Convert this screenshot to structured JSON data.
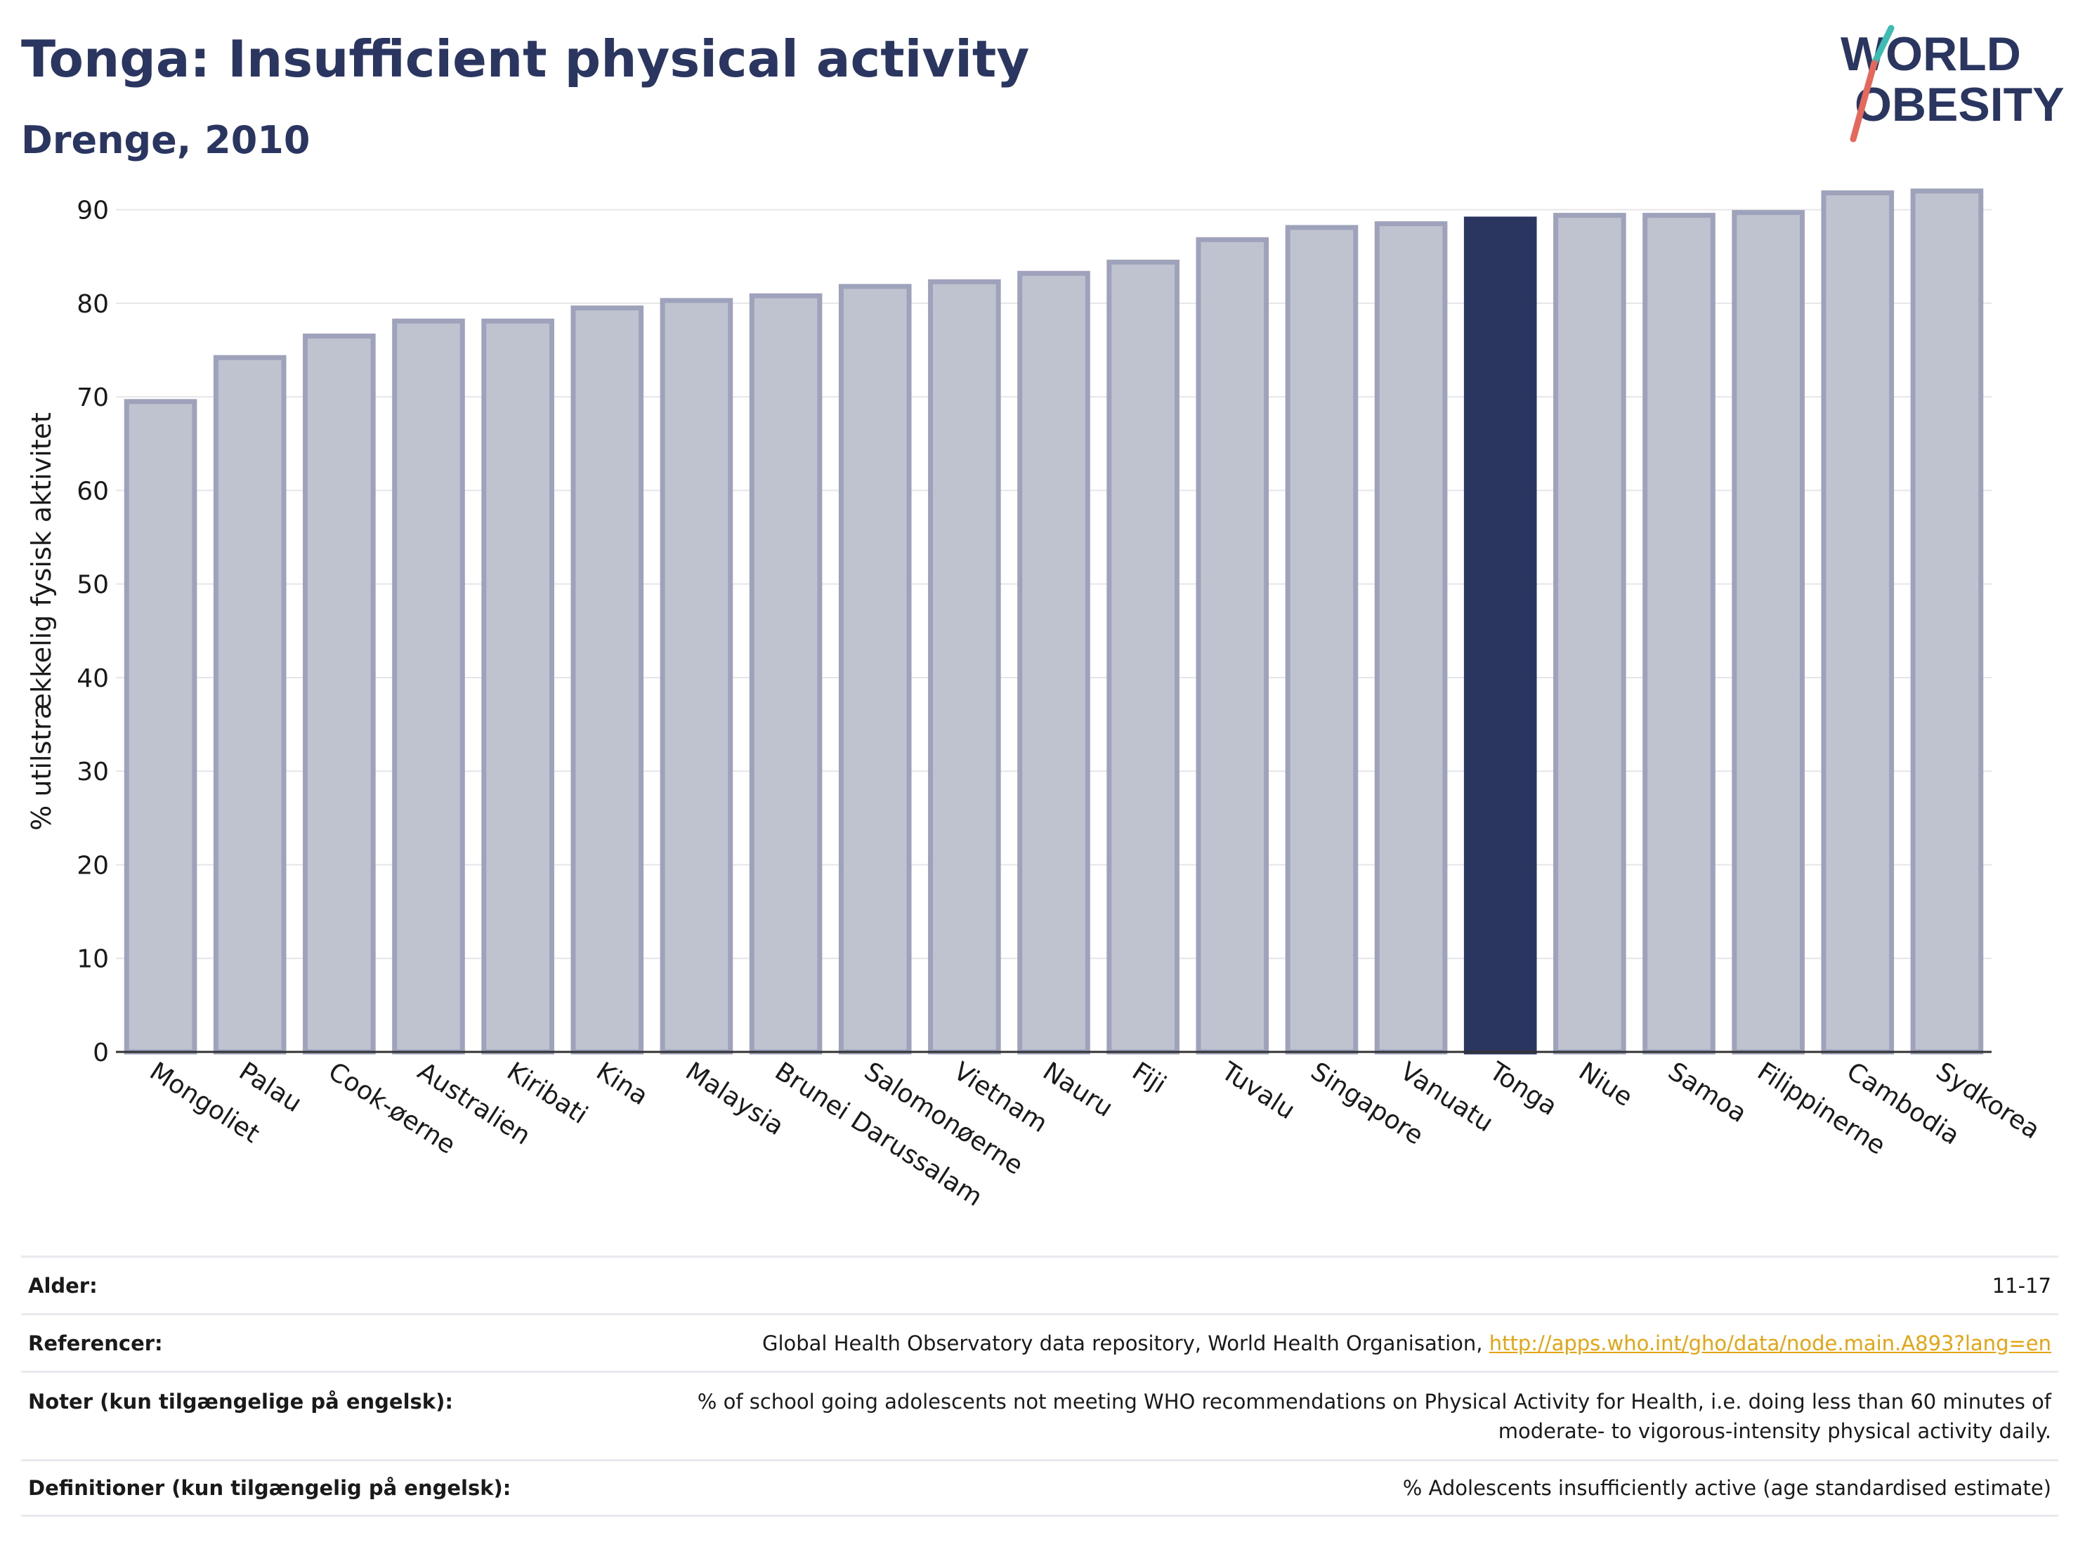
{
  "header": {
    "title": "Tonga: Insufficient physical activity",
    "subtitle": "Drenge, 2010"
  },
  "logo": {
    "line1": "WORLD",
    "line2": "OBESITY",
    "accent_colors": [
      "#3dbcb3",
      "#e4685c"
    ]
  },
  "chart_data": {
    "type": "bar",
    "ylabel": "% utilstrækkelig fysisk aktivitet",
    "ylim": [
      0,
      95
    ],
    "yticks": [
      0,
      10,
      20,
      30,
      40,
      50,
      60,
      70,
      80,
      90
    ],
    "grid": true,
    "highlight": "Tonga",
    "colors": {
      "bar": "#bfc2cf",
      "bar_edge": "#9ea3bb",
      "highlight": "#2a3560"
    },
    "categories": [
      "Mongoliet",
      "Palau",
      "Cook-øerne",
      "Australien",
      "Kiribati",
      "Kina",
      "Malaysia",
      "Brunei Darussalam",
      "Salomonøerne",
      "Vietnam",
      "Nauru",
      "Fiji",
      "Tuvalu",
      "Singapore",
      "Vanuatu",
      "Tonga",
      "Niue",
      "Samoa",
      "Filippinerne",
      "Cambodia",
      "Sydkorea"
    ],
    "values": [
      69.5,
      74.2,
      76.5,
      78.1,
      78.1,
      79.5,
      80.3,
      80.8,
      81.8,
      82.3,
      83.2,
      84.4,
      86.8,
      88.1,
      88.5,
      89.0,
      89.4,
      89.4,
      89.7,
      91.8,
      92.0
    ]
  },
  "info": {
    "rows": [
      {
        "label": "Alder:",
        "value": "11-17"
      },
      {
        "label": "Referencer:",
        "value": "Global Health Observatory data repository, World Health Organisation, ",
        "link": "http://apps.who.int/gho/data/node.main.A893?lang=en"
      },
      {
        "label": "Noter (kun tilgængelige på engelsk):",
        "value": "% of school going adolescents not meeting WHO recommendations on Physical Activity for Health, i.e. doing less than 60 minutes of moderate- to vigorous-intensity physical activity daily."
      },
      {
        "label": "Definitioner (kun tilgængelig på engelsk):",
        "value": "% Adolescents insufficiently active (age standardised estimate)"
      }
    ]
  }
}
